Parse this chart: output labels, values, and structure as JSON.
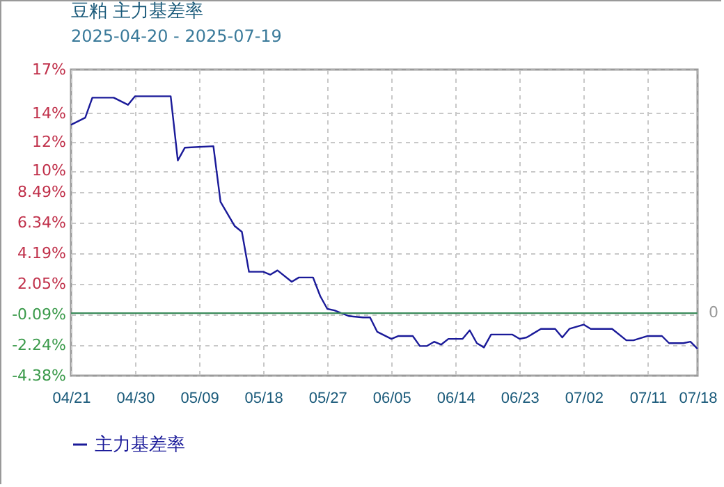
{
  "chart_data": {
    "type": "line",
    "title": "豆粕 主力基差率",
    "subtitle": "2025-04-20 - 2025-07-19",
    "x": [
      "2025-04-21",
      "2025-04-23",
      "2025-04-24",
      "2025-04-27",
      "2025-04-29",
      "2025-04-30",
      "2025-05-05",
      "2025-05-06",
      "2025-05-07",
      "2025-05-11",
      "2025-05-12",
      "2025-05-14",
      "2025-05-15",
      "2025-05-16",
      "2025-05-18",
      "2025-05-19",
      "2025-05-20",
      "2025-05-22",
      "2025-05-23",
      "2025-05-25",
      "2025-05-26",
      "2025-05-27",
      "2025-05-28",
      "2025-05-30",
      "2025-06-01",
      "2025-06-02",
      "2025-06-03",
      "2025-06-05",
      "2025-06-06",
      "2025-06-08",
      "2025-06-09",
      "2025-06-10",
      "2025-06-11",
      "2025-06-12",
      "2025-06-13",
      "2025-06-15",
      "2025-06-16",
      "2025-06-17",
      "2025-06-18",
      "2025-06-19",
      "2025-06-22",
      "2025-06-23",
      "2025-06-24",
      "2025-06-26",
      "2025-06-28",
      "2025-06-29",
      "2025-06-30",
      "2025-07-02",
      "2025-07-03",
      "2025-07-06",
      "2025-07-08",
      "2025-07-09",
      "2025-07-11",
      "2025-07-13",
      "2025-07-14",
      "2025-07-16",
      "2025-07-17",
      "2025-07-18"
    ],
    "series": [
      {
        "name": "主力基差率",
        "color": "#1a1a99",
        "values": [
          13.2,
          13.7,
          15.1,
          15.1,
          14.6,
          15.2,
          15.2,
          10.7,
          11.6,
          11.7,
          7.8,
          6.1,
          5.7,
          2.9,
          2.9,
          2.7,
          3.0,
          2.2,
          2.5,
          2.5,
          1.2,
          0.3,
          0.2,
          -0.2,
          -0.3,
          -0.3,
          -1.3,
          -1.8,
          -1.6,
          -1.6,
          -2.3,
          -2.3,
          -2.0,
          -2.2,
          -1.8,
          -1.8,
          -1.2,
          -2.1,
          -2.4,
          -1.5,
          -1.5,
          -1.8,
          -1.7,
          -1.1,
          -1.1,
          -1.7,
          -1.1,
          -0.8,
          -1.1,
          -1.1,
          -1.9,
          -1.9,
          -1.6,
          -1.6,
          -2.1,
          -2.1,
          -2.0,
          -2.5
        ]
      }
    ],
    "xlim": [
      "2025-04-21",
      "2025-07-18"
    ],
    "xticks": [
      {
        "value": "2025-04-21",
        "label": "04/21"
      },
      {
        "value": "2025-04-30",
        "label": "04/30"
      },
      {
        "value": "2025-05-09",
        "label": "05/09"
      },
      {
        "value": "2025-05-18",
        "label": "05/18"
      },
      {
        "value": "2025-05-27",
        "label": "05/27"
      },
      {
        "value": "2025-06-05",
        "label": "06/05"
      },
      {
        "value": "2025-06-14",
        "label": "06/14"
      },
      {
        "value": "2025-06-23",
        "label": "06/23"
      },
      {
        "value": "2025-07-02",
        "label": "07/02"
      },
      {
        "value": "2025-07-11",
        "label": "07/11"
      },
      {
        "value": "2025-07-18",
        "label": "07/18"
      }
    ],
    "ylim": [
      -4.38,
      17.07
    ],
    "yticks": [
      {
        "value": -4.38,
        "label": "-4.38%"
      },
      {
        "value": -2.24,
        "label": "-2.24%"
      },
      {
        "value": -0.09,
        "label": "-0.09%"
      },
      {
        "value": 2.05,
        "label": "2.05%"
      },
      {
        "value": 4.19,
        "label": "4.19%"
      },
      {
        "value": 6.34,
        "label": "6.34%"
      },
      {
        "value": 8.49,
        "label": "8.49%"
      },
      {
        "value": 10,
        "label": "10%"
      },
      {
        "value": 12,
        "label": "12%"
      },
      {
        "value": 14,
        "label": "14%"
      },
      {
        "value": 17.07,
        "label": "17%"
      }
    ],
    "ref_lines": [
      {
        "axis": "y",
        "value": 0,
        "label": "0",
        "color": "#3a8a5a"
      }
    ],
    "grid": true,
    "legend": "bottom left",
    "marker": "none",
    "line_style": "solid"
  }
}
